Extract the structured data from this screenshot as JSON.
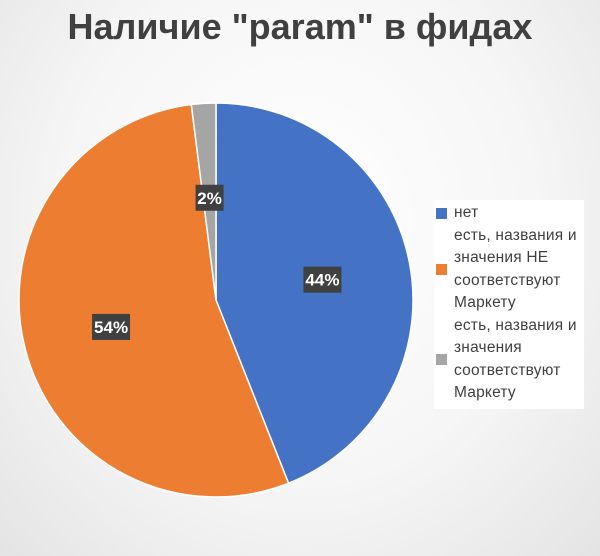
{
  "chart_data": {
    "type": "pie",
    "title": "Наличие \"param\" в фидах",
    "categories": [
      "нет",
      "есть, названия и\nзначения НЕ\nсоответствуют\nМаркету",
      "есть, названия и\nзначения\nсоответствуют\nМаркету"
    ],
    "values": [
      44,
      54,
      2
    ],
    "data_labels": [
      "44%",
      "54%",
      "2%"
    ],
    "colors": [
      "#4472C4",
      "#ED7D31",
      "#A5A5A5"
    ],
    "start_angle_deg": 0,
    "direction": "clockwise",
    "legend_position": "right"
  }
}
